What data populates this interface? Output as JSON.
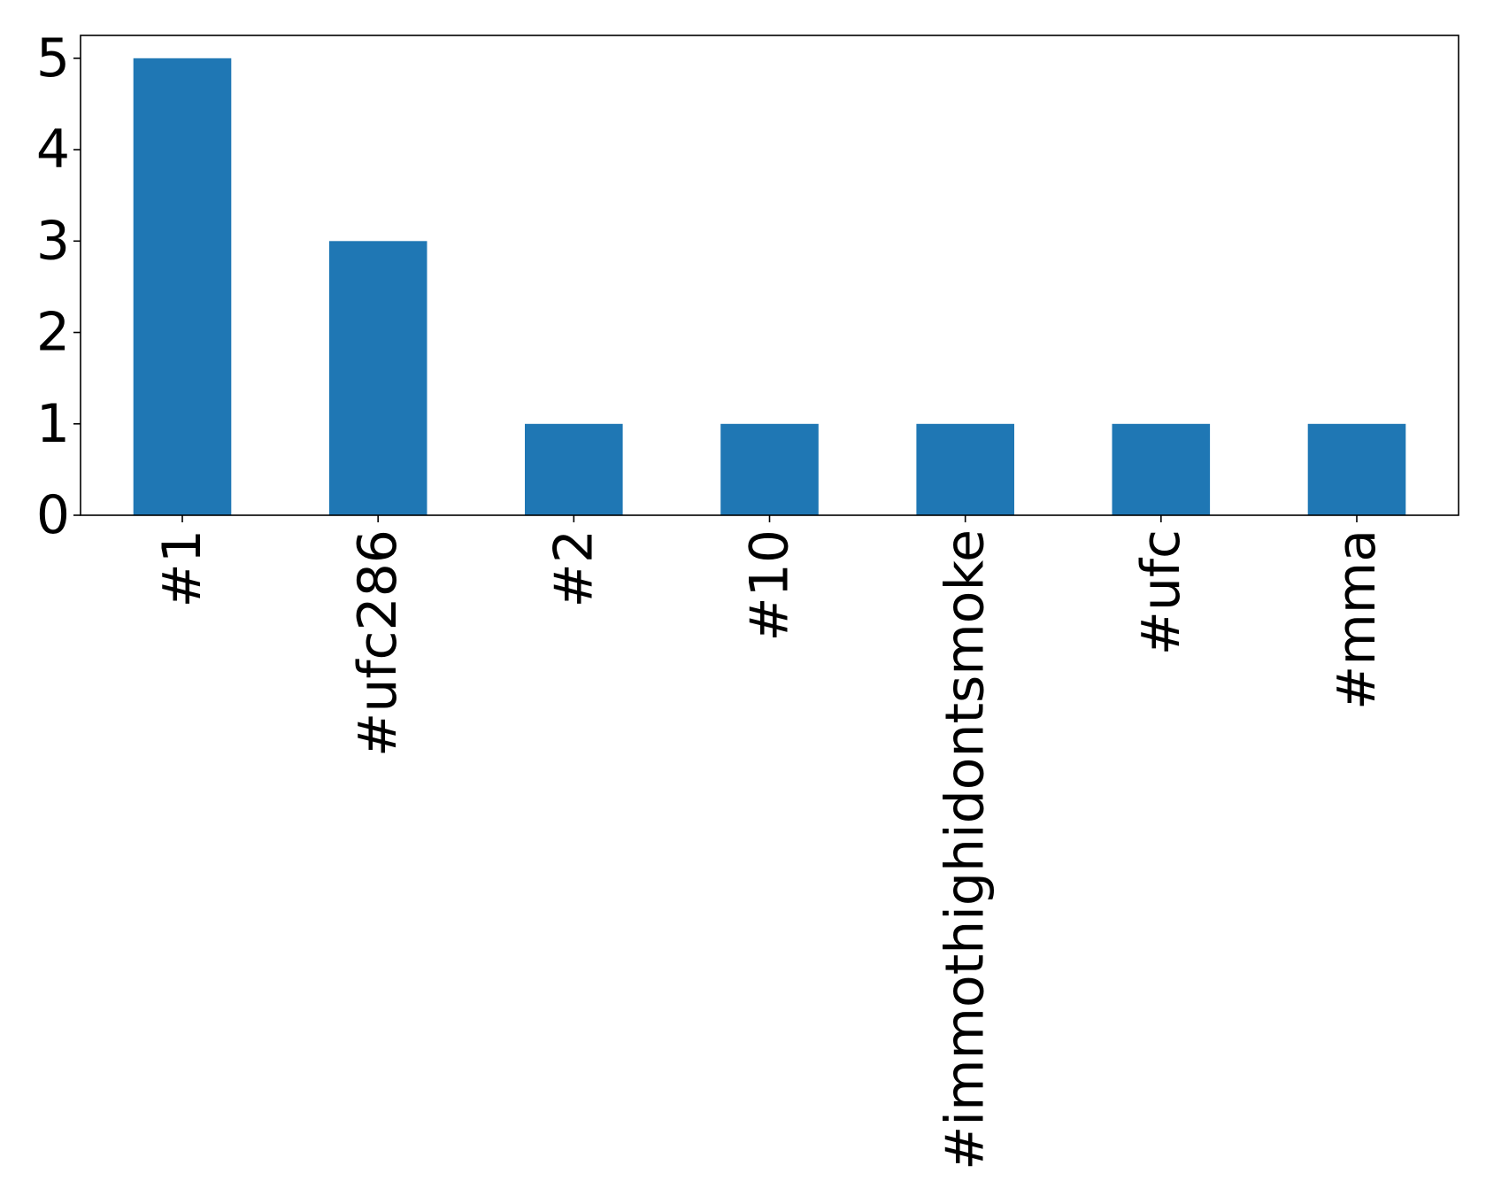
{
  "chart_data": {
    "type": "bar",
    "title": "",
    "xlabel": "",
    "ylabel": "",
    "categories": [
      "#1",
      "#ufc286",
      "#2",
      "#10",
      "#immothighidontsmoke",
      "#ufc",
      "#mma"
    ],
    "values": [
      5,
      3,
      1,
      1,
      1,
      1,
      1
    ],
    "ylim": [
      0,
      5.25
    ],
    "yticks": [
      0,
      1,
      2,
      3,
      4,
      5
    ],
    "ytick_labels": [
      "0",
      "1",
      "2",
      "3",
      "4",
      "5"
    ],
    "grid": false,
    "legend": "none",
    "bar_color": "#1f77b4",
    "x_tick_rotation": "vertical"
  }
}
